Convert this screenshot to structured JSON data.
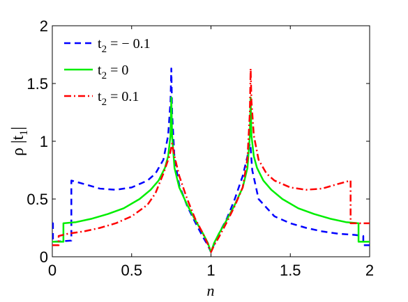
{
  "chart_data": {
    "type": "line",
    "xlabel": "n",
    "ylabel": "ρ |t1|",
    "ylabel_parts": {
      "pre": "ρ |t",
      "sub": "1",
      "post": "|"
    },
    "xlim": [
      0,
      2
    ],
    "ylim": [
      0,
      2
    ],
    "xticks": [
      0,
      0.5,
      1,
      1.5,
      2
    ],
    "xtick_labels": [
      "0",
      "0.5",
      "1",
      "1.5",
      "2"
    ],
    "yticks": [
      0,
      0.5,
      1,
      1.5,
      2
    ],
    "ytick_labels": [
      "0",
      "0.5",
      "1",
      "1.5",
      "2"
    ],
    "grid": false,
    "legend_position": "top-left",
    "series": [
      {
        "name": "t2 = − 0.1",
        "legend": {
          "pre": "t",
          "sub": "2",
          "post": " = − 0.1"
        },
        "color": "#0000ff",
        "style": "dashed",
        "points": [
          [
            0,
            0.29
          ],
          [
            0.004,
            0.29
          ],
          [
            0.004,
            0.13
          ],
          [
            0.12,
            0.14
          ],
          [
            0.12,
            0.66
          ],
          [
            0.2,
            0.63
          ],
          [
            0.3,
            0.59
          ],
          [
            0.4,
            0.58
          ],
          [
            0.5,
            0.6
          ],
          [
            0.6,
            0.66
          ],
          [
            0.65,
            0.72
          ],
          [
            0.7,
            0.84
          ],
          [
            0.73,
            1.05
          ],
          [
            0.745,
            1.35
          ],
          [
            0.75,
            1.63
          ],
          [
            0.755,
            1.25
          ],
          [
            0.77,
            0.85
          ],
          [
            0.8,
            0.62
          ],
          [
            0.85,
            0.44
          ],
          [
            0.9,
            0.3
          ],
          [
            0.95,
            0.17
          ],
          [
            0.98,
            0.1
          ],
          [
            1.0,
            0.04
          ],
          [
            1.02,
            0.11
          ],
          [
            1.05,
            0.2
          ],
          [
            1.1,
            0.33
          ],
          [
            1.15,
            0.5
          ],
          [
            1.2,
            0.7
          ],
          [
            1.23,
            0.87
          ],
          [
            1.245,
            0.98
          ],
          [
            1.25,
            0.94
          ],
          [
            1.26,
            0.75
          ],
          [
            1.3,
            0.5
          ],
          [
            1.4,
            0.35
          ],
          [
            1.5,
            0.29
          ],
          [
            1.6,
            0.25
          ],
          [
            1.7,
            0.22
          ],
          [
            1.8,
            0.2
          ],
          [
            1.9,
            0.19
          ],
          [
            1.96,
            0.18
          ],
          [
            1.96,
            0.1
          ],
          [
            1.99,
            0.1
          ],
          [
            2.0,
            0.1
          ]
        ]
      },
      {
        "name": "t2 = 0",
        "legend": {
          "pre": "t",
          "sub": "2",
          "post": " = 0"
        },
        "color": "#00ee00",
        "style": "solid",
        "points": [
          [
            0,
            0.13
          ],
          [
            0.07,
            0.13
          ],
          [
            0.07,
            0.29
          ],
          [
            0.15,
            0.3
          ],
          [
            0.25,
            0.33
          ],
          [
            0.35,
            0.37
          ],
          [
            0.45,
            0.42
          ],
          [
            0.55,
            0.5
          ],
          [
            0.62,
            0.58
          ],
          [
            0.67,
            0.66
          ],
          [
            0.71,
            0.77
          ],
          [
            0.73,
            0.87
          ],
          [
            0.745,
            1.05
          ],
          [
            0.75,
            1.38
          ],
          [
            0.755,
            1.05
          ],
          [
            0.77,
            0.77
          ],
          [
            0.8,
            0.6
          ],
          [
            0.85,
            0.45
          ],
          [
            0.9,
            0.32
          ],
          [
            0.95,
            0.2
          ],
          [
            0.98,
            0.12
          ],
          [
            1.0,
            0.04
          ],
          [
            1.02,
            0.12
          ],
          [
            1.05,
            0.2
          ],
          [
            1.1,
            0.32
          ],
          [
            1.15,
            0.45
          ],
          [
            1.2,
            0.6
          ],
          [
            1.23,
            0.77
          ],
          [
            1.245,
            1.05
          ],
          [
            1.25,
            1.38
          ],
          [
            1.255,
            1.05
          ],
          [
            1.27,
            0.87
          ],
          [
            1.29,
            0.77
          ],
          [
            1.33,
            0.66
          ],
          [
            1.38,
            0.58
          ],
          [
            1.45,
            0.5
          ],
          [
            1.55,
            0.42
          ],
          [
            1.65,
            0.37
          ],
          [
            1.75,
            0.33
          ],
          [
            1.85,
            0.3
          ],
          [
            1.93,
            0.29
          ],
          [
            1.93,
            0.13
          ],
          [
            2.0,
            0.13
          ]
        ]
      },
      {
        "name": "t2 = 0.1",
        "legend": {
          "pre": "t",
          "sub": "2",
          "post": " = 0.1"
        },
        "color": "#ff0000",
        "style": "dashdot",
        "points": [
          [
            0,
            0.1
          ],
          [
            0.04,
            0.1
          ],
          [
            0.04,
            0.18
          ],
          [
            0.1,
            0.2
          ],
          [
            0.2,
            0.22
          ],
          [
            0.3,
            0.25
          ],
          [
            0.4,
            0.29
          ],
          [
            0.5,
            0.35
          ],
          [
            0.6,
            0.45
          ],
          [
            0.65,
            0.55
          ],
          [
            0.7,
            0.72
          ],
          [
            0.74,
            0.88
          ],
          [
            0.755,
            0.98
          ],
          [
            0.76,
            0.94
          ],
          [
            0.77,
            0.87
          ],
          [
            0.8,
            0.7
          ],
          [
            0.85,
            0.5
          ],
          [
            0.9,
            0.33
          ],
          [
            0.95,
            0.2
          ],
          [
            0.98,
            0.11
          ],
          [
            1.0,
            0.04
          ],
          [
            1.02,
            0.1
          ],
          [
            1.05,
            0.17
          ],
          [
            1.1,
            0.3
          ],
          [
            1.15,
            0.44
          ],
          [
            1.2,
            0.6
          ],
          [
            1.23,
            0.85
          ],
          [
            1.245,
            1.25
          ],
          [
            1.25,
            1.63
          ],
          [
            1.255,
            1.35
          ],
          [
            1.27,
            1.05
          ],
          [
            1.3,
            0.84
          ],
          [
            1.35,
            0.72
          ],
          [
            1.4,
            0.66
          ],
          [
            1.5,
            0.6
          ],
          [
            1.6,
            0.58
          ],
          [
            1.7,
            0.59
          ],
          [
            1.8,
            0.63
          ],
          [
            1.88,
            0.66
          ],
          [
            1.88,
            0.29
          ],
          [
            1.99,
            0.29
          ],
          [
            2.0,
            0.29
          ]
        ]
      }
    ]
  }
}
